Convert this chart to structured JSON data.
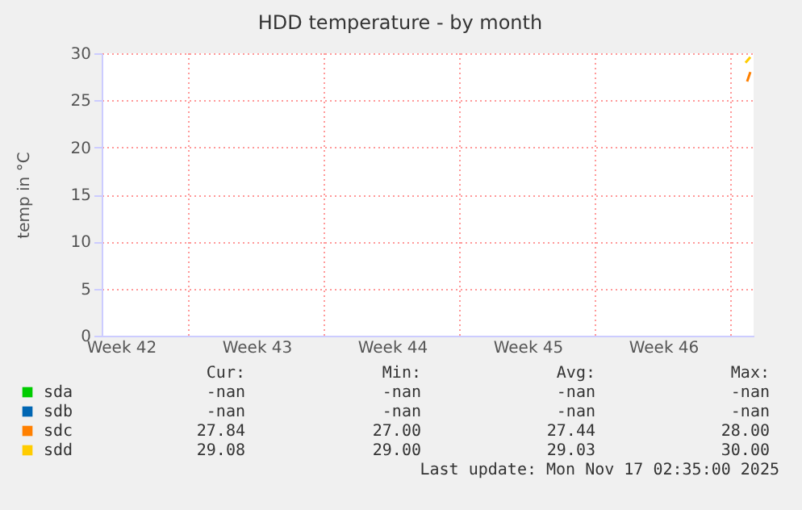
{
  "chart_data": {
    "type": "line",
    "title": "HDD temperature - by month",
    "ylabel": "temp in °C",
    "xlim": [
      "2025-10-14T12:00",
      "2025-11-17T04:00"
    ],
    "ylim": [
      0,
      30
    ],
    "yticks": [
      0,
      5,
      10,
      15,
      20,
      25,
      30
    ],
    "xticks": [
      {
        "value": "2025-10-15T12:00",
        "label": "Week 42"
      },
      {
        "value": "2025-10-19T00:00",
        "label": null
      },
      {
        "value": "2025-10-22T12:00",
        "label": "Week 43"
      },
      {
        "value": "2025-10-26T00:00",
        "label": null
      },
      {
        "value": "2025-10-29T12:00",
        "label": "Week 44"
      },
      {
        "value": "2025-11-02T00:00",
        "label": null
      },
      {
        "value": "2025-11-05T12:00",
        "label": "Week 45"
      },
      {
        "value": "2025-11-09T00:00",
        "label": null
      },
      {
        "value": "2025-11-12T12:00",
        "label": "Week 46"
      },
      {
        "value": "2025-11-16T00:00",
        "label": null
      }
    ],
    "grid": true,
    "legend": "bottom",
    "series": [
      {
        "name": "sda",
        "color": "#00cc00"
      },
      {
        "name": "sdb",
        "color": "#0066b3"
      },
      {
        "name": "sdc",
        "color": "#ff8000",
        "x": [
          "2025-11-16T20:00",
          "2025-11-17T00:00"
        ],
        "values": [
          27.0,
          28.0
        ]
      },
      {
        "name": "sdd",
        "color": "#ffcc00",
        "x": [
          "2025-11-16T18:00",
          "2025-11-17T00:00"
        ],
        "values": [
          29.0,
          29.6
        ]
      }
    ],
    "annotations": [
      "Cur:",
      "Min:",
      "Avg:",
      "Max:",
      "-nan",
      "-nan",
      "-nan",
      "-nan",
      "-nan",
      "-nan",
      "-nan",
      "-nan",
      "27.84",
      "27.00",
      "27.44",
      "28.00",
      "29.08",
      "29.00",
      "29.03",
      "30.00",
      "Last update: Mon Nov 17 02:35:00 2025"
    ]
  }
}
